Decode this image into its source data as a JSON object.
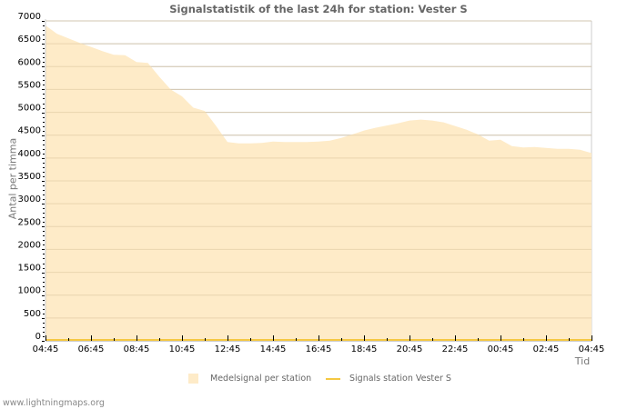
{
  "chart_data": {
    "type": "area",
    "title": "Signalstatistik of the last 24h for station: Vester S",
    "xlabel": "Tid",
    "ylabel": "Antal per timma",
    "ylim": [
      0,
      7000
    ],
    "y_ticks": [
      0,
      500,
      1000,
      1500,
      2000,
      2500,
      3000,
      3500,
      4000,
      4500,
      5000,
      5500,
      6000,
      6500,
      7000
    ],
    "x_tick_labels": [
      "04:45",
      "06:45",
      "08:45",
      "10:45",
      "12:45",
      "14:45",
      "16:45",
      "18:45",
      "20:45",
      "22:45",
      "00:45",
      "02:45",
      "04:45"
    ],
    "grid": true,
    "legend_position": "bottom",
    "x": [
      "04:45",
      "05:15",
      "05:45",
      "06:15",
      "06:45",
      "07:15",
      "07:45",
      "08:15",
      "08:45",
      "09:15",
      "09:45",
      "10:15",
      "10:45",
      "11:15",
      "11:45",
      "12:15",
      "12:45",
      "13:15",
      "13:45",
      "14:15",
      "14:45",
      "15:15",
      "15:45",
      "16:15",
      "16:45",
      "17:15",
      "17:45",
      "18:15",
      "18:45",
      "19:15",
      "19:45",
      "20:15",
      "20:45",
      "21:15",
      "21:45",
      "22:15",
      "22:45",
      "23:15",
      "23:45",
      "00:15",
      "00:45",
      "01:15",
      "01:45",
      "02:15",
      "02:45",
      "03:15",
      "03:45",
      "04:15",
      "04:45"
    ],
    "series": [
      {
        "name": "Medelsignal per station",
        "kind": "area",
        "color": "#feebc8",
        "values": [
          6900,
          6720,
          6620,
          6520,
          6430,
          6340,
          6260,
          6250,
          6100,
          6080,
          5780,
          5500,
          5350,
          5100,
          5030,
          4700,
          4350,
          4320,
          4320,
          4330,
          4360,
          4350,
          4350,
          4350,
          4360,
          4380,
          4440,
          4520,
          4600,
          4660,
          4710,
          4760,
          4820,
          4840,
          4820,
          4780,
          4700,
          4620,
          4520,
          4380,
          4400,
          4260,
          4230,
          4240,
          4220,
          4200,
          4200,
          4180,
          4110
        ]
      },
      {
        "name": "Signals station Vester S",
        "kind": "line",
        "color": "#f5c842",
        "values": [
          0,
          0,
          0,
          0,
          0,
          0,
          0,
          0,
          0,
          0,
          0,
          0,
          0,
          0,
          0,
          0,
          0,
          0,
          0,
          0,
          0,
          0,
          0,
          0,
          0,
          0,
          0,
          0,
          0,
          0,
          0,
          0,
          0,
          0,
          0,
          0,
          0,
          0,
          0,
          0,
          0,
          0,
          0,
          0,
          0,
          0,
          0,
          0,
          0
        ]
      }
    ]
  },
  "footer": {
    "site": "www.lightningmaps.org"
  }
}
